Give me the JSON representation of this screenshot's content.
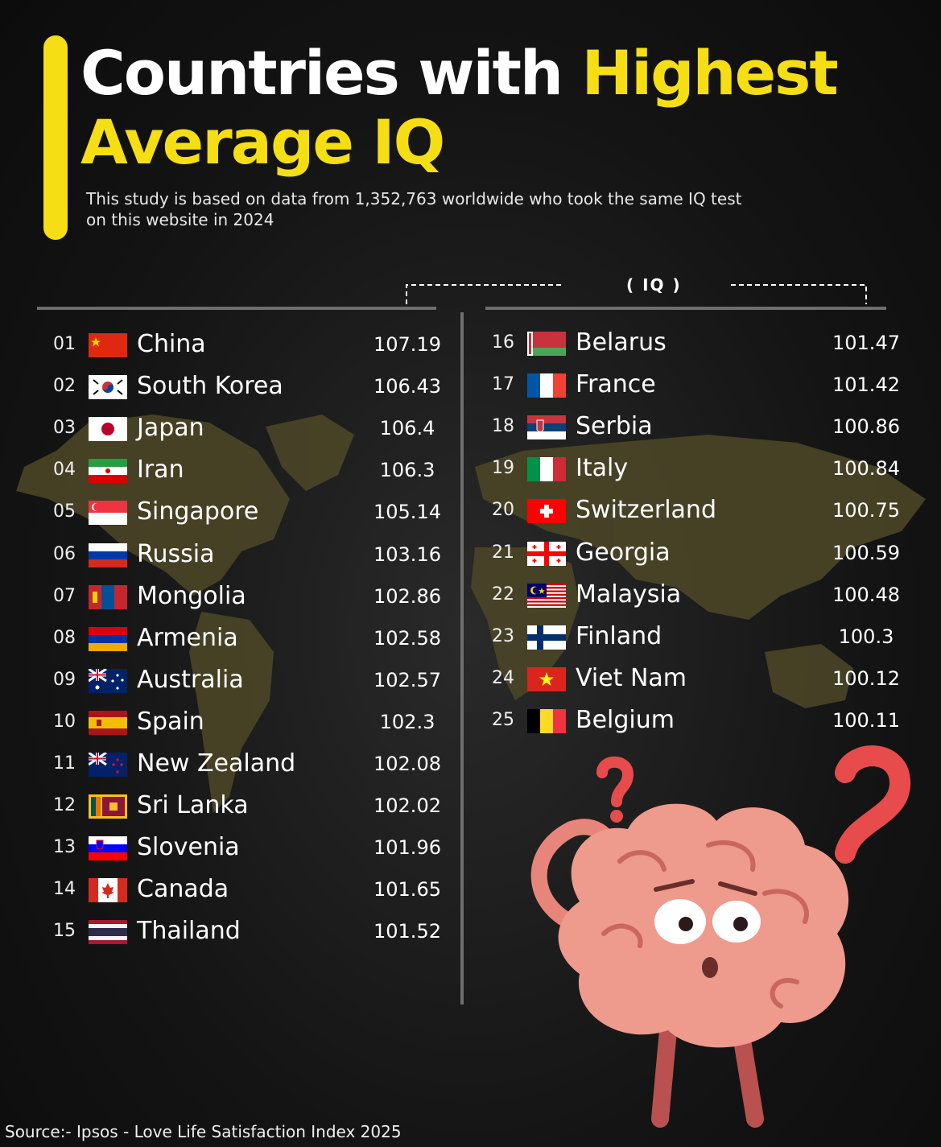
{
  "header": {
    "title_part1": "Countries with ",
    "title_part2": "Highest",
    "title_part3": "Average IQ",
    "subtitle": "This study is based on data from 1,352,763 worldwide who took the same IQ test on this website in 2024"
  },
  "colors": {
    "accent": "#f5de13",
    "map": "#4b4527",
    "background": "#141414"
  },
  "chart_data": {
    "type": "table",
    "column_header": "( IQ )",
    "rows": [
      {
        "rank": "01",
        "country": "China",
        "iq": "107.19",
        "flag": "cn"
      },
      {
        "rank": "02",
        "country": "South Korea",
        "iq": "106.43",
        "flag": "kr"
      },
      {
        "rank": "03",
        "country": "Japan",
        "iq": "106.4",
        "flag": "jp"
      },
      {
        "rank": "04",
        "country": "Iran",
        "iq": "106.3",
        "flag": "ir"
      },
      {
        "rank": "05",
        "country": "Singapore",
        "iq": "105.14",
        "flag": "sg"
      },
      {
        "rank": "06",
        "country": "Russia",
        "iq": "103.16",
        "flag": "ru"
      },
      {
        "rank": "07",
        "country": "Mongolia",
        "iq": "102.86",
        "flag": "mn"
      },
      {
        "rank": "08",
        "country": "Armenia",
        "iq": "102.58",
        "flag": "am"
      },
      {
        "rank": "09",
        "country": "Australia",
        "iq": "102.57",
        "flag": "au"
      },
      {
        "rank": "10",
        "country": "Spain",
        "iq": "102.3",
        "flag": "es"
      },
      {
        "rank": "11",
        "country": "New Zealand",
        "iq": "102.08",
        "flag": "nz"
      },
      {
        "rank": "12",
        "country": "Sri Lanka",
        "iq": "102.02",
        "flag": "lk"
      },
      {
        "rank": "13",
        "country": "Slovenia",
        "iq": "101.96",
        "flag": "si"
      },
      {
        "rank": "14",
        "country": "Canada",
        "iq": "101.65",
        "flag": "ca"
      },
      {
        "rank": "15",
        "country": "Thailand",
        "iq": "101.52",
        "flag": "th"
      },
      {
        "rank": "16",
        "country": "Belarus",
        "iq": "101.47",
        "flag": "by"
      },
      {
        "rank": "17",
        "country": "France",
        "iq": "101.42",
        "flag": "fr"
      },
      {
        "rank": "18",
        "country": "Serbia",
        "iq": "100.86",
        "flag": "rs"
      },
      {
        "rank": "19",
        "country": "Italy",
        "iq": "100.84",
        "flag": "it"
      },
      {
        "rank": "20",
        "country": "Switzerland",
        "iq": "100.75",
        "flag": "ch"
      },
      {
        "rank": "21",
        "country": "Georgia",
        "iq": "100.59",
        "flag": "ge"
      },
      {
        "rank": "22",
        "country": "Malaysia",
        "iq": "100.48",
        "flag": "my"
      },
      {
        "rank": "23",
        "country": "Finland",
        "iq": "100.3",
        "flag": "fi"
      },
      {
        "rank": "24",
        "country": "Viet Nam",
        "iq": "100.12",
        "flag": "vn"
      },
      {
        "rank": "25",
        "country": "Belgium",
        "iq": "100.11",
        "flag": "be"
      }
    ]
  },
  "footer": {
    "source": "Source:- Ipsos - Love Life Satisfaction Index 2025"
  }
}
